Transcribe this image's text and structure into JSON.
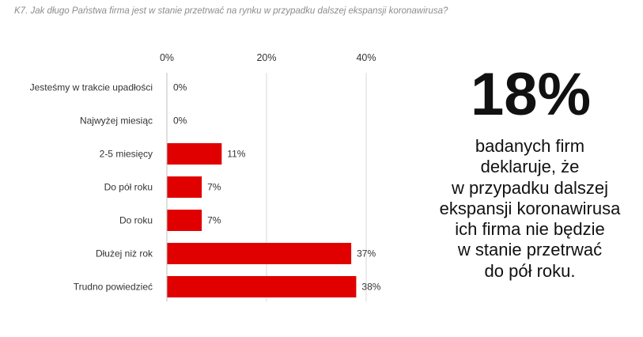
{
  "question": "K7. Jak długo Państwa firma jest w stanie przetrwać na rynku w przypadku dalszej ekspansji koronawirusa?",
  "chart_data": {
    "type": "bar",
    "orientation": "horizontal",
    "categories": [
      "Jesteśmy w trakcie upadłości",
      "Najwyżej miesiąc",
      "2-5 miesięcy",
      "Do pół roku",
      "Do roku",
      "Dłużej niż rok",
      "Trudno powiedzieć"
    ],
    "values": [
      0,
      0,
      11,
      7,
      7,
      37,
      38
    ],
    "value_labels": [
      "0%",
      "0%",
      "11%",
      "7%",
      "7%",
      "37%",
      "38%"
    ],
    "x_ticks": [
      "0%",
      "20%",
      "40%"
    ],
    "x_tick_values": [
      0,
      20,
      40
    ],
    "xlim": [
      0,
      40
    ],
    "bar_color": "#e00000",
    "grid": true,
    "legend": "none"
  },
  "highlight": {
    "value": "18%",
    "lines": [
      "badanych firm",
      "deklaruje, że",
      "w przypadku dalszej",
      "ekspansji koronawirusa",
      "ich firma nie będzie",
      "w stanie przetrwać",
      "do pół roku."
    ]
  }
}
